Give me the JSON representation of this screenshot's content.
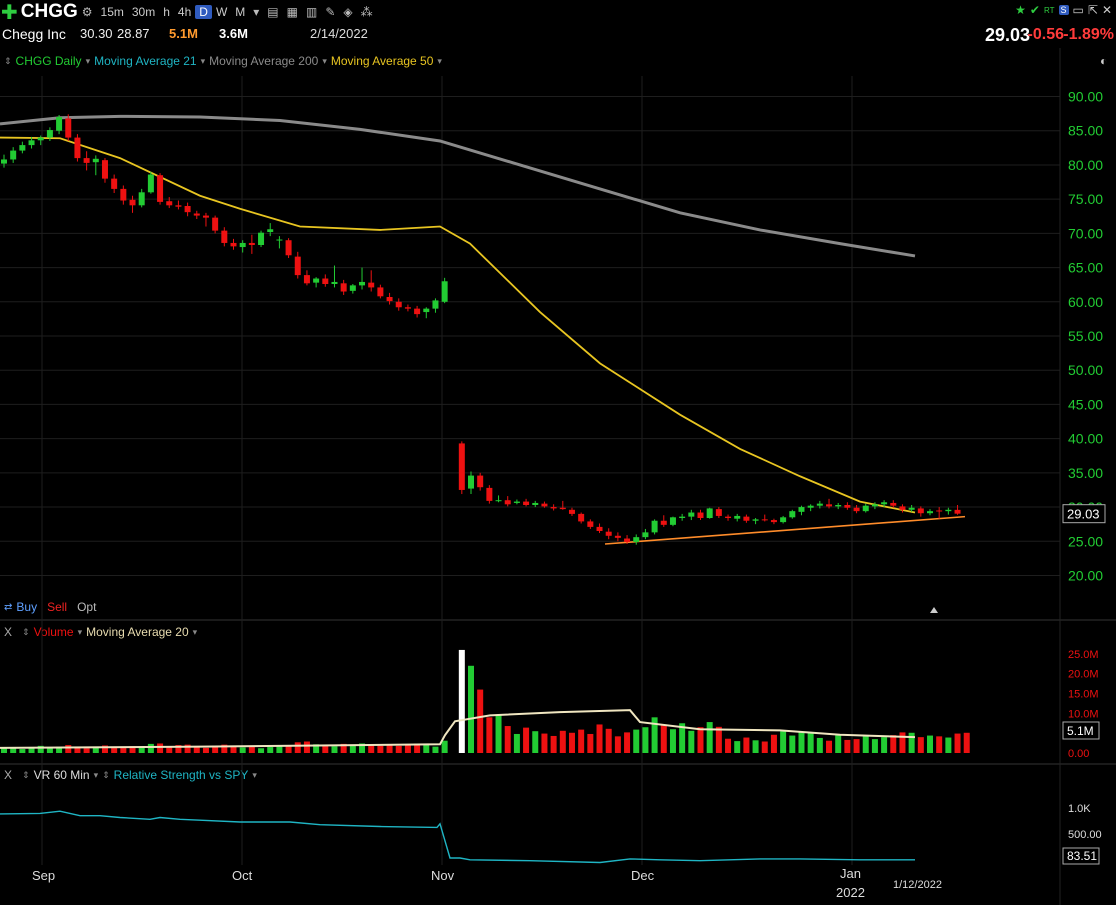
{
  "toolbar": {
    "symbol": "CHGG",
    "timeframes": [
      "15m",
      "30m",
      "h",
      "4h",
      "D",
      "W",
      "M"
    ],
    "active_timeframe": "D"
  },
  "quote": {
    "name": "Chegg Inc",
    "high": "30.30",
    "low": "28.87",
    "volume": "5.1M",
    "avg_volume": "3.6M",
    "date": "2/14/2022",
    "last": "29.03",
    "change": "-0.56",
    "change_pct": "-1.89%"
  },
  "price_legend": {
    "series": "CHGG Daily",
    "ma21": "Moving Average 21",
    "ma200": "Moving Average 200",
    "ma50": "Moving Average 50"
  },
  "trade_buttons": {
    "buy": "Buy",
    "sell": "Sell",
    "opt": "Opt"
  },
  "volume_legend": {
    "close": "X",
    "volume": "Volume",
    "ma": "Moving Average 20"
  },
  "rs_legend": {
    "close": "X",
    "vr": "VR 60 Min",
    "rs": "Relative Strength vs SPY"
  },
  "colors": {
    "up": "#22cc33",
    "down": "#ee1111",
    "ma50": "#e8c521",
    "ma200": "#8a8a8a",
    "trendline": "#ff8c2a",
    "axis_text": "#22cc33",
    "rs_line": "#1fb5c4",
    "vol_axis_text": "#ee1111"
  },
  "chart_data": [
    {
      "type": "candlestick",
      "title": "CHGG Daily",
      "x_labels": [
        "Sep",
        "Oct",
        "Nov",
        "Dec",
        "Jan",
        "2022"
      ],
      "ylim": [
        17,
        93
      ],
      "yticks": [
        "90.00",
        "85.00",
        "80.00",
        "75.00",
        "70.00",
        "65.00",
        "60.00",
        "55.00",
        "50.00",
        "45.00",
        "40.00",
        "35.00",
        "30.00",
        "25.00",
        "20.00"
      ],
      "last_price_label": "29.03",
      "candles": [
        [
          80.2,
          81.5,
          79.6,
          80.8
        ],
        [
          80.8,
          82.6,
          80.3,
          82.1
        ],
        [
          82.1,
          83.4,
          81.7,
          82.9
        ],
        [
          82.9,
          84.1,
          82.4,
          83.6
        ],
        [
          83.6,
          84.3,
          82.9,
          84.0
        ],
        [
          84.0,
          85.5,
          83.5,
          85.1
        ],
        [
          85.0,
          87.3,
          84.5,
          87.0
        ],
        [
          86.8,
          87.4,
          83.5,
          84.0
        ],
        [
          84.0,
          84.5,
          80.5,
          81.0
        ],
        [
          81.0,
          82.0,
          79.2,
          80.3
        ],
        [
          80.4,
          81.4,
          78.5,
          80.9
        ],
        [
          80.7,
          81.0,
          77.4,
          78.0
        ],
        [
          78.0,
          78.6,
          75.9,
          76.5
        ],
        [
          76.5,
          77.0,
          74.2,
          74.8
        ],
        [
          74.9,
          75.5,
          73.0,
          74.1
        ],
        [
          74.1,
          76.5,
          73.8,
          76.0
        ],
        [
          76.0,
          79.0,
          75.8,
          78.6
        ],
        [
          78.5,
          78.8,
          74.2,
          74.6
        ],
        [
          74.7,
          75.3,
          73.7,
          74.1
        ],
        [
          74.1,
          74.8,
          73.5,
          73.9
        ],
        [
          74.0,
          74.5,
          72.5,
          73.1
        ],
        [
          72.9,
          73.3,
          72.1,
          72.6
        ],
        [
          72.6,
          73.0,
          71.0,
          72.3
        ],
        [
          72.3,
          72.6,
          70.0,
          70.4
        ],
        [
          70.4,
          70.9,
          68.1,
          68.6
        ],
        [
          68.6,
          69.2,
          67.6,
          68.1
        ],
        [
          68.0,
          69.0,
          67.2,
          68.6
        ],
        [
          68.6,
          69.8,
          67.0,
          68.3
        ],
        [
          68.3,
          70.4,
          68.0,
          70.1
        ],
        [
          70.2,
          71.5,
          69.6,
          70.6
        ],
        [
          69.1,
          69.6,
          67.8,
          69.1
        ],
        [
          69.0,
          69.3,
          66.4,
          66.8
        ],
        [
          66.6,
          67.3,
          63.4,
          63.9
        ],
        [
          63.9,
          64.6,
          62.4,
          62.7
        ],
        [
          62.8,
          63.6,
          62.1,
          63.4
        ],
        [
          63.4,
          64.0,
          62.2,
          62.6
        ],
        [
          62.6,
          65.3,
          62.1,
          62.9
        ],
        [
          62.7,
          63.2,
          61.0,
          61.5
        ],
        [
          61.6,
          62.6,
          61.2,
          62.4
        ],
        [
          62.4,
          65.0,
          61.8,
          62.9
        ],
        [
          62.8,
          64.6,
          61.5,
          62.1
        ],
        [
          62.1,
          62.5,
          60.5,
          60.8
        ],
        [
          60.7,
          61.3,
          59.6,
          60.1
        ],
        [
          60.0,
          60.5,
          58.7,
          59.2
        ],
        [
          59.2,
          59.6,
          58.6,
          59.0
        ],
        [
          59.0,
          59.4,
          57.7,
          58.2
        ],
        [
          58.5,
          59.2,
          57.6,
          59.0
        ],
        [
          59.0,
          60.5,
          58.4,
          60.2
        ],
        [
          60.0,
          63.5,
          59.8,
          63.0
        ],
        [
          39.3,
          39.6,
          31.9,
          32.5
        ],
        [
          32.7,
          35.2,
          31.9,
          34.6
        ],
        [
          34.6,
          35.0,
          32.4,
          32.9
        ],
        [
          32.8,
          33.2,
          30.5,
          30.9
        ],
        [
          31.0,
          31.7,
          30.7,
          31.0
        ],
        [
          31.0,
          31.6,
          30.1,
          30.4
        ],
        [
          30.6,
          31.1,
          30.4,
          30.8
        ],
        [
          30.8,
          31.2,
          30.1,
          30.3
        ],
        [
          30.3,
          30.9,
          30.0,
          30.6
        ],
        [
          30.5,
          30.8,
          29.9,
          30.1
        ],
        [
          30.0,
          30.4,
          29.5,
          29.8
        ],
        [
          29.9,
          30.9,
          29.6,
          29.7
        ],
        [
          29.6,
          29.9,
          28.7,
          29.0
        ],
        [
          29.0,
          29.2,
          27.6,
          27.9
        ],
        [
          27.9,
          28.2,
          26.8,
          27.1
        ],
        [
          27.1,
          27.6,
          26.2,
          26.5
        ],
        [
          26.4,
          26.9,
          25.3,
          25.8
        ],
        [
          25.8,
          26.3,
          25.0,
          25.5
        ],
        [
          25.4,
          25.9,
          24.6,
          24.9
        ],
        [
          24.9,
          26.0,
          24.5,
          25.6
        ],
        [
          25.6,
          26.8,
          25.3,
          26.3
        ],
        [
          26.3,
          28.2,
          26.0,
          28.0
        ],
        [
          28.0,
          28.8,
          27.1,
          27.4
        ],
        [
          27.4,
          28.6,
          27.2,
          28.5
        ],
        [
          28.4,
          29.0,
          28.0,
          28.6
        ],
        [
          28.6,
          29.6,
          28.1,
          29.2
        ],
        [
          29.2,
          29.6,
          28.1,
          28.4
        ],
        [
          28.4,
          29.9,
          28.3,
          29.8
        ],
        [
          29.7,
          30.0,
          28.4,
          28.7
        ],
        [
          28.6,
          28.9,
          28.0,
          28.4
        ],
        [
          28.3,
          29.0,
          27.9,
          28.7
        ],
        [
          28.6,
          28.9,
          27.7,
          28.0
        ],
        [
          28.0,
          28.4,
          27.5,
          28.2
        ],
        [
          28.2,
          28.9,
          27.9,
          28.1
        ],
        [
          28.1,
          28.3,
          27.5,
          27.8
        ],
        [
          27.8,
          28.7,
          27.6,
          28.5
        ],
        [
          28.5,
          29.6,
          28.3,
          29.4
        ],
        [
          29.3,
          30.2,
          28.8,
          30.0
        ],
        [
          29.9,
          30.4,
          29.4,
          30.2
        ],
        [
          30.2,
          30.9,
          29.8,
          30.5
        ],
        [
          30.4,
          31.2,
          29.8,
          30.1
        ],
        [
          30.1,
          30.6,
          29.7,
          30.3
        ],
        [
          30.3,
          30.7,
          29.6,
          29.9
        ],
        [
          29.9,
          30.3,
          29.1,
          29.4
        ],
        [
          29.4,
          30.5,
          29.2,
          30.2
        ],
        [
          30.1,
          30.7,
          29.7,
          30.4
        ],
        [
          30.4,
          31.0,
          30.0,
          30.7
        ],
        [
          30.6,
          31.0,
          29.9,
          30.2
        ],
        [
          30.1,
          30.4,
          29.2,
          29.6
        ],
        [
          29.6,
          30.3,
          29.3,
          29.9
        ],
        [
          29.8,
          30.1,
          28.6,
          29.1
        ],
        [
          29.1,
          29.7,
          28.8,
          29.4
        ],
        [
          29.5,
          30.0,
          28.3,
          29.4
        ],
        [
          29.4,
          29.9,
          28.9,
          29.6
        ],
        [
          29.59,
          30.3,
          28.87,
          29.03
        ]
      ],
      "ma50": [
        [
          0,
          84.0
        ],
        [
          60,
          83.9
        ],
        [
          120,
          81.0
        ],
        [
          200,
          75.5
        ],
        [
          240,
          73.6
        ],
        [
          300,
          71.0
        ],
        [
          380,
          70.5
        ],
        [
          440,
          71.0
        ],
        [
          470,
          68.5
        ],
        [
          540,
          58.5
        ],
        [
          600,
          51.0
        ],
        [
          680,
          43.5
        ],
        [
          740,
          38.5
        ],
        [
          800,
          34.5
        ],
        [
          860,
          30.8
        ],
        [
          915,
          29.2
        ]
      ],
      "ma200": [
        [
          0,
          86.0
        ],
        [
          60,
          86.9
        ],
        [
          120,
          87.1
        ],
        [
          200,
          87.0
        ],
        [
          280,
          86.5
        ],
        [
          360,
          85.2
        ],
        [
          440,
          83.5
        ],
        [
          520,
          80.0
        ],
        [
          600,
          76.5
        ],
        [
          680,
          73.0
        ],
        [
          760,
          70.5
        ],
        [
          840,
          68.5
        ],
        [
          915,
          66.7
        ]
      ],
      "trendline": [
        [
          605,
          24.6
        ],
        [
          965,
          28.6
        ]
      ]
    },
    {
      "type": "bar",
      "title": "Volume",
      "ylim": [
        0,
        28
      ],
      "yticks": [
        "25.0M",
        "20.0M",
        "15.0M",
        "10.0M",
        "5.0M",
        "0.00"
      ],
      "last_label": "5.1M",
      "values": [
        1.2,
        1.5,
        1.0,
        1.3,
        1.8,
        1.4,
        1.6,
        2.0,
        1.5,
        1.2,
        1.4,
        1.9,
        1.6,
        1.3,
        1.7,
        1.5,
        2.3,
        2.4,
        1.4,
        2.0,
        2.1,
        1.6,
        1.3,
        1.5,
        2.1,
        1.8,
        1.4,
        1.6,
        1.2,
        1.5,
        2.0,
        1.7,
        2.7,
        2.9,
        2.2,
        1.8,
        1.7,
        2.3,
        2.0,
        2.4,
        1.9,
        1.8,
        2.1,
        1.8,
        1.9,
        2.0,
        2.3,
        1.6,
        3.1,
        26.0,
        22.0,
        16.0,
        9.0,
        9.5,
        6.8,
        4.8,
        6.4,
        5.5,
        4.9,
        4.3,
        5.6,
        5.1,
        5.9,
        4.8,
        7.2,
        6.1,
        4.2,
        5.2,
        5.9,
        6.5,
        9.0,
        7.1,
        6.0,
        7.5,
        5.6,
        6.5,
        7.8,
        6.6,
        3.6,
        3.0,
        3.9,
        3.2,
        2.9,
        4.6,
        5.5,
        4.4,
        5.4,
        5.2,
        3.8,
        3.1,
        4.5,
        3.3,
        3.5,
        4.2,
        3.5,
        4.0,
        4.5,
        5.2,
        5.1,
        4.0,
        4.4,
        4.2,
        3.9,
        4.9,
        5.1
      ],
      "ma": [
        [
          0,
          1.3
        ],
        [
          200,
          1.6
        ],
        [
          440,
          2.2
        ],
        [
          445,
          4.5
        ],
        [
          455,
          8.0
        ],
        [
          490,
          9.5
        ],
        [
          560,
          10.3
        ],
        [
          630,
          10.8
        ],
        [
          640,
          7.8
        ],
        [
          700,
          6.0
        ],
        [
          780,
          5.7
        ],
        [
          840,
          4.6
        ],
        [
          915,
          4.0
        ]
      ]
    },
    {
      "type": "line",
      "title": "Relative Strength vs SPY",
      "ytick_labels": [
        "1.0K",
        "500.00"
      ],
      "last_label": "83.51",
      "x_labels": [
        "Sep",
        "Oct",
        "Nov",
        "Dec",
        "Jan",
        "2022",
        "1/12/2022"
      ],
      "values": [
        [
          0,
          31
        ],
        [
          40,
          30.5
        ],
        [
          60,
          28
        ],
        [
          80,
          33
        ],
        [
          100,
          33
        ],
        [
          120,
          35
        ],
        [
          150,
          37
        ],
        [
          160,
          35
        ],
        [
          180,
          37
        ],
        [
          200,
          38
        ],
        [
          240,
          40
        ],
        [
          290,
          40
        ],
        [
          320,
          43
        ],
        [
          380,
          45
        ],
        [
          437,
          46
        ],
        [
          440,
          42
        ],
        [
          450,
          80
        ],
        [
          460,
          80
        ],
        [
          470,
          82
        ],
        [
          530,
          83
        ],
        [
          600,
          85
        ],
        [
          630,
          81
        ],
        [
          660,
          82
        ],
        [
          700,
          83
        ],
        [
          760,
          81
        ],
        [
          800,
          81
        ],
        [
          860,
          82
        ],
        [
          915,
          82
        ]
      ]
    }
  ]
}
